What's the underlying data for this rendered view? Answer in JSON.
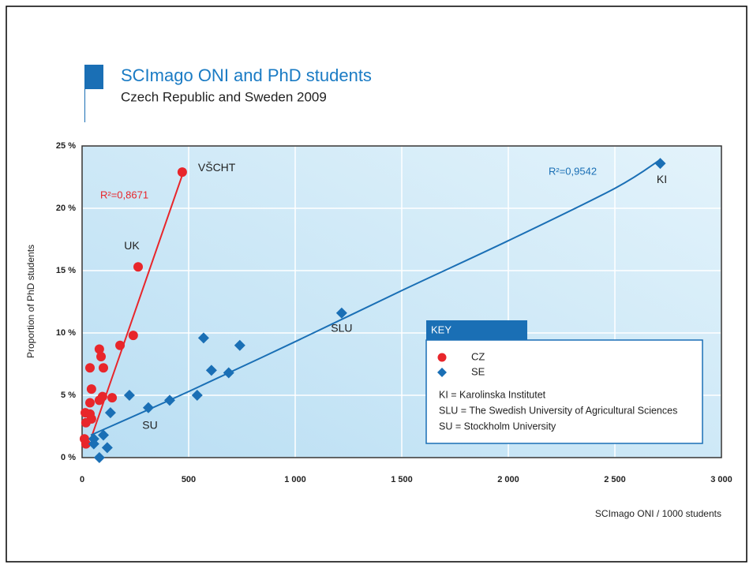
{
  "chart_data": {
    "type": "scatter",
    "title": "SCImago ONI and PhD students",
    "subtitle": "Czech Republic and Sweden 2009",
    "x_label": "SCImago ONI / 1000 students",
    "y_label": "Proportion of PhD students",
    "xlim": [
      0,
      3000
    ],
    "ylim": [
      0,
      25
    ],
    "xticks": [
      0,
      500,
      {
        "value": 1000,
        "label": "1 000"
      },
      {
        "value": 1500,
        "label": "1 500"
      },
      {
        "value": 2000,
        "label": "2 000"
      },
      {
        "value": 2500,
        "label": "2 500"
      },
      {
        "value": 3000,
        "label": "3 000"
      }
    ],
    "yticks": [
      {
        "value": 0,
        "label": "0 %"
      },
      {
        "value": 5,
        "label": "5 %"
      },
      {
        "value": 10,
        "label": "10 %"
      },
      {
        "value": 15,
        "label": "15 %"
      },
      {
        "value": 20,
        "label": "20 %"
      },
      {
        "value": 25,
        "label": "25 %"
      }
    ],
    "grid": true,
    "legend_title": "KEY",
    "legend_notes": [
      "KI = Karolinska Institutet",
      "SLU = The Swedish University of Agricultural Sciences",
      "SU = Stockholm University"
    ],
    "series": [
      {
        "name": "CZ",
        "color": "#e8262b",
        "marker": "circle",
        "x": [
          470,
          263,
          240,
          178,
          81,
          89,
          100,
          37,
          44,
          96,
          141,
          81,
          37,
          15,
          37,
          44,
          18,
          11,
          18
        ],
        "values": [
          22.9,
          15.3,
          9.8,
          9.0,
          8.7,
          8.1,
          7.2,
          7.2,
          5.5,
          4.9,
          4.8,
          4.6,
          4.4,
          3.6,
          3.5,
          3.1,
          2.8,
          1.5,
          1.1
        ],
        "point_labels": [
          "VŠCHT",
          "UK",
          null,
          null,
          null,
          null,
          null,
          null,
          null,
          null,
          null,
          null,
          null,
          null,
          null,
          null,
          null,
          null,
          null
        ]
      },
      {
        "name": "SE",
        "color": "#1a6fb5",
        "marker": "diamond",
        "x": [
          2713,
          1218,
          570,
          740,
          607,
          688,
          222,
          540,
          411,
          311,
          133,
          100,
          55,
          55,
          118,
          81
        ],
        "values": [
          23.6,
          11.6,
          9.6,
          9.0,
          7.0,
          6.8,
          5.0,
          5.0,
          4.6,
          4.0,
          3.6,
          1.8,
          1.5,
          1.1,
          0.8,
          0
        ],
        "point_labels": [
          "KI",
          "SLU",
          null,
          null,
          null,
          null,
          null,
          null,
          null,
          "SU",
          null,
          null,
          null,
          null,
          null,
          null
        ]
      }
    ],
    "trendlines": [
      {
        "color": "#e8262b",
        "label": "R²=0,8671",
        "x": [
          41,
          477
        ],
        "y": [
          1.5,
          23.0
        ]
      },
      {
        "color": "#1a6fb5",
        "label": "R²=0,9542",
        "x": [
          41,
          500,
          1000,
          1500,
          2000,
          2500,
          2713
        ],
        "y": [
          1.8,
          5.3,
          9.3,
          13.4,
          17.4,
          21.6,
          23.9
        ]
      }
    ]
  }
}
